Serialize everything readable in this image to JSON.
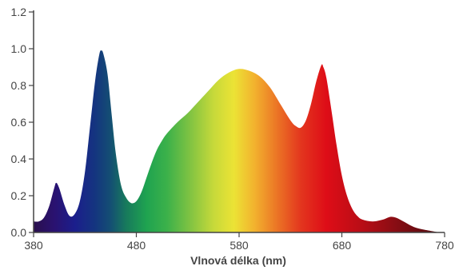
{
  "chart_data": {
    "type": "area",
    "title": "",
    "xlabel": "Vlnová délka (nm)",
    "ylabel": "",
    "xlim": [
      380,
      780
    ],
    "ylim": [
      0,
      1.2
    ],
    "grid": false,
    "legend": "none",
    "x_ticks": [
      380,
      480,
      580,
      680,
      780
    ],
    "y_ticks": [
      0.0,
      0.2,
      0.4,
      0.6,
      0.8,
      1.0,
      1.2
    ],
    "x_tick_labels": [
      "380",
      "480",
      "580",
      "680",
      "780"
    ],
    "y_tick_labels": [
      "0.0",
      "0.2",
      "0.4",
      "0.6",
      "0.8",
      "1.0",
      "1.2"
    ],
    "fill": "visible-spectrum gradient",
    "axis_color": "#444444",
    "points": [
      [
        380,
        0.06
      ],
      [
        385,
        0.06
      ],
      [
        390,
        0.08
      ],
      [
        395,
        0.14
      ],
      [
        400,
        0.24
      ],
      [
        402,
        0.27
      ],
      [
        405,
        0.24
      ],
      [
        410,
        0.15
      ],
      [
        415,
        0.09
      ],
      [
        420,
        0.1
      ],
      [
        425,
        0.17
      ],
      [
        430,
        0.33
      ],
      [
        435,
        0.58
      ],
      [
        440,
        0.83
      ],
      [
        444,
        0.97
      ],
      [
        446,
        0.99
      ],
      [
        448,
        0.97
      ],
      [
        452,
        0.86
      ],
      [
        456,
        0.64
      ],
      [
        460,
        0.43
      ],
      [
        465,
        0.26
      ],
      [
        470,
        0.19
      ],
      [
        475,
        0.16
      ],
      [
        480,
        0.17
      ],
      [
        485,
        0.22
      ],
      [
        490,
        0.3
      ],
      [
        495,
        0.38
      ],
      [
        500,
        0.45
      ],
      [
        505,
        0.5
      ],
      [
        510,
        0.54
      ],
      [
        520,
        0.6
      ],
      [
        530,
        0.65
      ],
      [
        540,
        0.71
      ],
      [
        550,
        0.77
      ],
      [
        560,
        0.83
      ],
      [
        570,
        0.87
      ],
      [
        580,
        0.89
      ],
      [
        590,
        0.88
      ],
      [
        600,
        0.85
      ],
      [
        610,
        0.79
      ],
      [
        620,
        0.7
      ],
      [
        630,
        0.61
      ],
      [
        635,
        0.58
      ],
      [
        640,
        0.57
      ],
      [
        645,
        0.61
      ],
      [
        650,
        0.7
      ],
      [
        655,
        0.82
      ],
      [
        660,
        0.91
      ],
      [
        662,
        0.9
      ],
      [
        665,
        0.84
      ],
      [
        670,
        0.66
      ],
      [
        675,
        0.47
      ],
      [
        680,
        0.31
      ],
      [
        685,
        0.2
      ],
      [
        690,
        0.13
      ],
      [
        695,
        0.09
      ],
      [
        700,
        0.07
      ],
      [
        710,
        0.06
      ],
      [
        720,
        0.07
      ],
      [
        727,
        0.085
      ],
      [
        733,
        0.08
      ],
      [
        740,
        0.06
      ],
      [
        750,
        0.03
      ],
      [
        760,
        0.015
      ],
      [
        770,
        0.005
      ],
      [
        775,
        0.0
      ]
    ],
    "gradient_stops": [
      {
        "nm": 380,
        "color": "#2a0f4d"
      },
      {
        "nm": 400,
        "color": "#2a1270"
      },
      {
        "nm": 420,
        "color": "#1b1e8c"
      },
      {
        "nm": 440,
        "color": "#14357f"
      },
      {
        "nm": 455,
        "color": "#144f73"
      },
      {
        "nm": 470,
        "color": "#177a5c"
      },
      {
        "nm": 490,
        "color": "#1fa350"
      },
      {
        "nm": 510,
        "color": "#3cb14a"
      },
      {
        "nm": 530,
        "color": "#79c143"
      },
      {
        "nm": 555,
        "color": "#c6d93a"
      },
      {
        "nm": 575,
        "color": "#ece335"
      },
      {
        "nm": 595,
        "color": "#f2b22e"
      },
      {
        "nm": 615,
        "color": "#ec7a26"
      },
      {
        "nm": 640,
        "color": "#e3361e"
      },
      {
        "nm": 665,
        "color": "#de0d17"
      },
      {
        "nm": 700,
        "color": "#b80d16"
      },
      {
        "nm": 740,
        "color": "#7d0d13"
      },
      {
        "nm": 780,
        "color": "#4d0a0e"
      }
    ]
  }
}
